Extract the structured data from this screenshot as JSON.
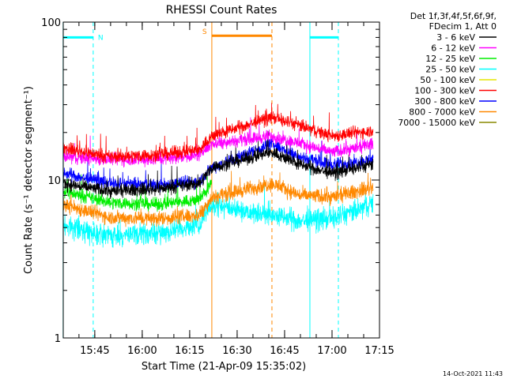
{
  "chart_data": {
    "type": "line",
    "title": "RHESSI Count Rates",
    "xlabel": "Start Time (21-Apr-09 15:35:02)",
    "ylabel": "Count Rate (s⁻¹ detector segment⁻¹)",
    "yscale": "log",
    "ylim": [
      1,
      100
    ],
    "xlim": [
      "15:35:02",
      "17:15:00"
    ],
    "x_ticks": [
      "15:45",
      "16:00",
      "16:15",
      "16:30",
      "16:45",
      "17:00",
      "17:15"
    ],
    "y_ticks": [
      "1",
      "10",
      "100"
    ],
    "grid": false,
    "legend_position": "right",
    "legend_header": [
      "Det 1f,3f,4f,5f,6f,9f,",
      "FDecim 1, Att 0"
    ],
    "timestamp": "14-Oct-2021 11:43",
    "series": [
      {
        "name": "3 - 6 keV",
        "color": "#000000",
        "x": [
          "15:35",
          "15:50",
          "16:05",
          "16:18",
          "16:22",
          "16:41",
          "16:50",
          "17:00",
          "17:08",
          "17:13"
        ],
        "values": [
          9.5,
          8.5,
          8.8,
          9.5,
          12,
          15,
          12.5,
          11,
          12,
          12.5
        ]
      },
      {
        "name": "6 - 12 keV",
        "color": "#ff00ff",
        "x": [
          "15:35",
          "15:50",
          "16:05",
          "16:18",
          "16:22",
          "16:41",
          "16:50",
          "17:00",
          "17:08",
          "17:13"
        ],
        "values": [
          14,
          13.5,
          13.5,
          14.5,
          17,
          19,
          17,
          15,
          16,
          17
        ]
      },
      {
        "name": "12 - 25 keV",
        "color": "#00ee00",
        "x": [
          "15:35",
          "15:50",
          "16:05",
          "16:18",
          "16:22",
          "16:41",
          "16:50",
          "17:00",
          "17:08",
          "17:13"
        ],
        "values": [
          8.5,
          7.2,
          7.0,
          7.5,
          9.5,
          null,
          null,
          null,
          null,
          null
        ]
      },
      {
        "name": "25 - 50 keV",
        "color": "#00ffff",
        "x": [
          "15:35",
          "15:50",
          "16:05",
          "16:18",
          "16:22",
          "16:41",
          "16:50",
          "17:00",
          "17:08",
          "17:13"
        ],
        "values": [
          5.2,
          4.4,
          4.6,
          5.2,
          7.0,
          6.0,
          5.5,
          5.7,
          6.4,
          7.2
        ]
      },
      {
        "name": "50 - 100 keV",
        "color": "#e6e600",
        "x": [],
        "values": []
      },
      {
        "name": "100 - 300 keV",
        "color": "#ff0000",
        "x": [
          "15:35",
          "15:50",
          "16:05",
          "16:18",
          "16:22",
          "16:41",
          "16:50",
          "17:00",
          "17:08",
          "17:13"
        ],
        "values": [
          16,
          14,
          14.5,
          15.5,
          19,
          25,
          22,
          19,
          20,
          20.5
        ]
      },
      {
        "name": "300 - 800 keV",
        "color": "#0000ff",
        "x": [
          "15:35",
          "15:50",
          "16:05",
          "16:18",
          "16:22",
          "16:41",
          "16:50",
          "17:00",
          "17:08",
          "17:13"
        ],
        "values": [
          11,
          9.5,
          9.3,
          9.8,
          12,
          17,
          14,
          12.5,
          13,
          13.5
        ]
      },
      {
        "name": "800 - 7000 keV",
        "color": "#ff8800",
        "x": [
          "15:35",
          "15:50",
          "16:05",
          "16:18",
          "16:22",
          "16:41",
          "16:50",
          "17:00",
          "17:08",
          "17:13"
        ],
        "values": [
          7.0,
          5.8,
          5.7,
          6.0,
          7.8,
          9.5,
          8.0,
          7.8,
          8.5,
          9.0
        ]
      },
      {
        "name": "7000 - 15000 keV",
        "color": "#888800",
        "x": [],
        "values": []
      }
    ],
    "annotations": [
      {
        "label": "N",
        "color": "#00ffff",
        "start": "15:35",
        "end": "15:44:30",
        "y": 80
      },
      {
        "label": "S",
        "color": "#ff8800",
        "start": "16:22",
        "end": "16:41",
        "y": 82
      },
      {
        "label": "",
        "color": "#00ffff",
        "start": "16:53",
        "end": "17:02",
        "y": 80
      }
    ]
  }
}
